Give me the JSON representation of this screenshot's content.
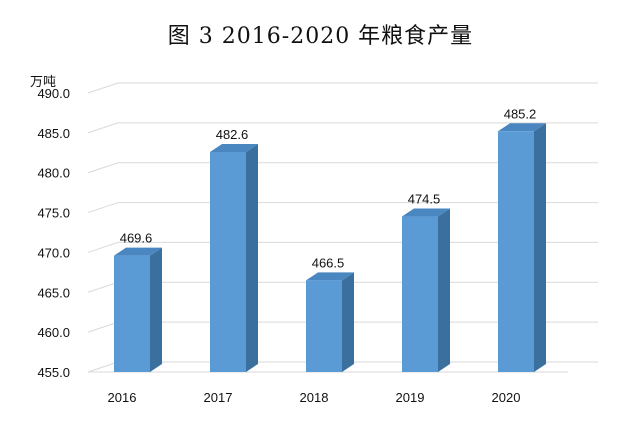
{
  "chart_data": {
    "type": "bar",
    "title": "图 3 2016-2020 年粮食产量",
    "ylabel": "万吨",
    "xlabel": "",
    "categories": [
      "2016",
      "2017",
      "2018",
      "2019",
      "2020"
    ],
    "values": [
      469.6,
      482.6,
      466.5,
      474.5,
      485.2
    ],
    "data_labels": [
      "469.6",
      "482.6",
      "466.5",
      "474.5",
      "485.2"
    ],
    "y_ticks": [
      "455.0",
      "460.0",
      "465.0",
      "470.0",
      "475.0",
      "480.0",
      "485.0",
      "490.0"
    ],
    "ylim": [
      455,
      490
    ],
    "grid": true,
    "legend": "none",
    "bar_style": "3d-column",
    "colors": {
      "bar_front": "#5b9bd5",
      "bar_side": "#3b6f9e",
      "bar_top": "#4a86bf",
      "grid": "#d9d9d9"
    }
  }
}
